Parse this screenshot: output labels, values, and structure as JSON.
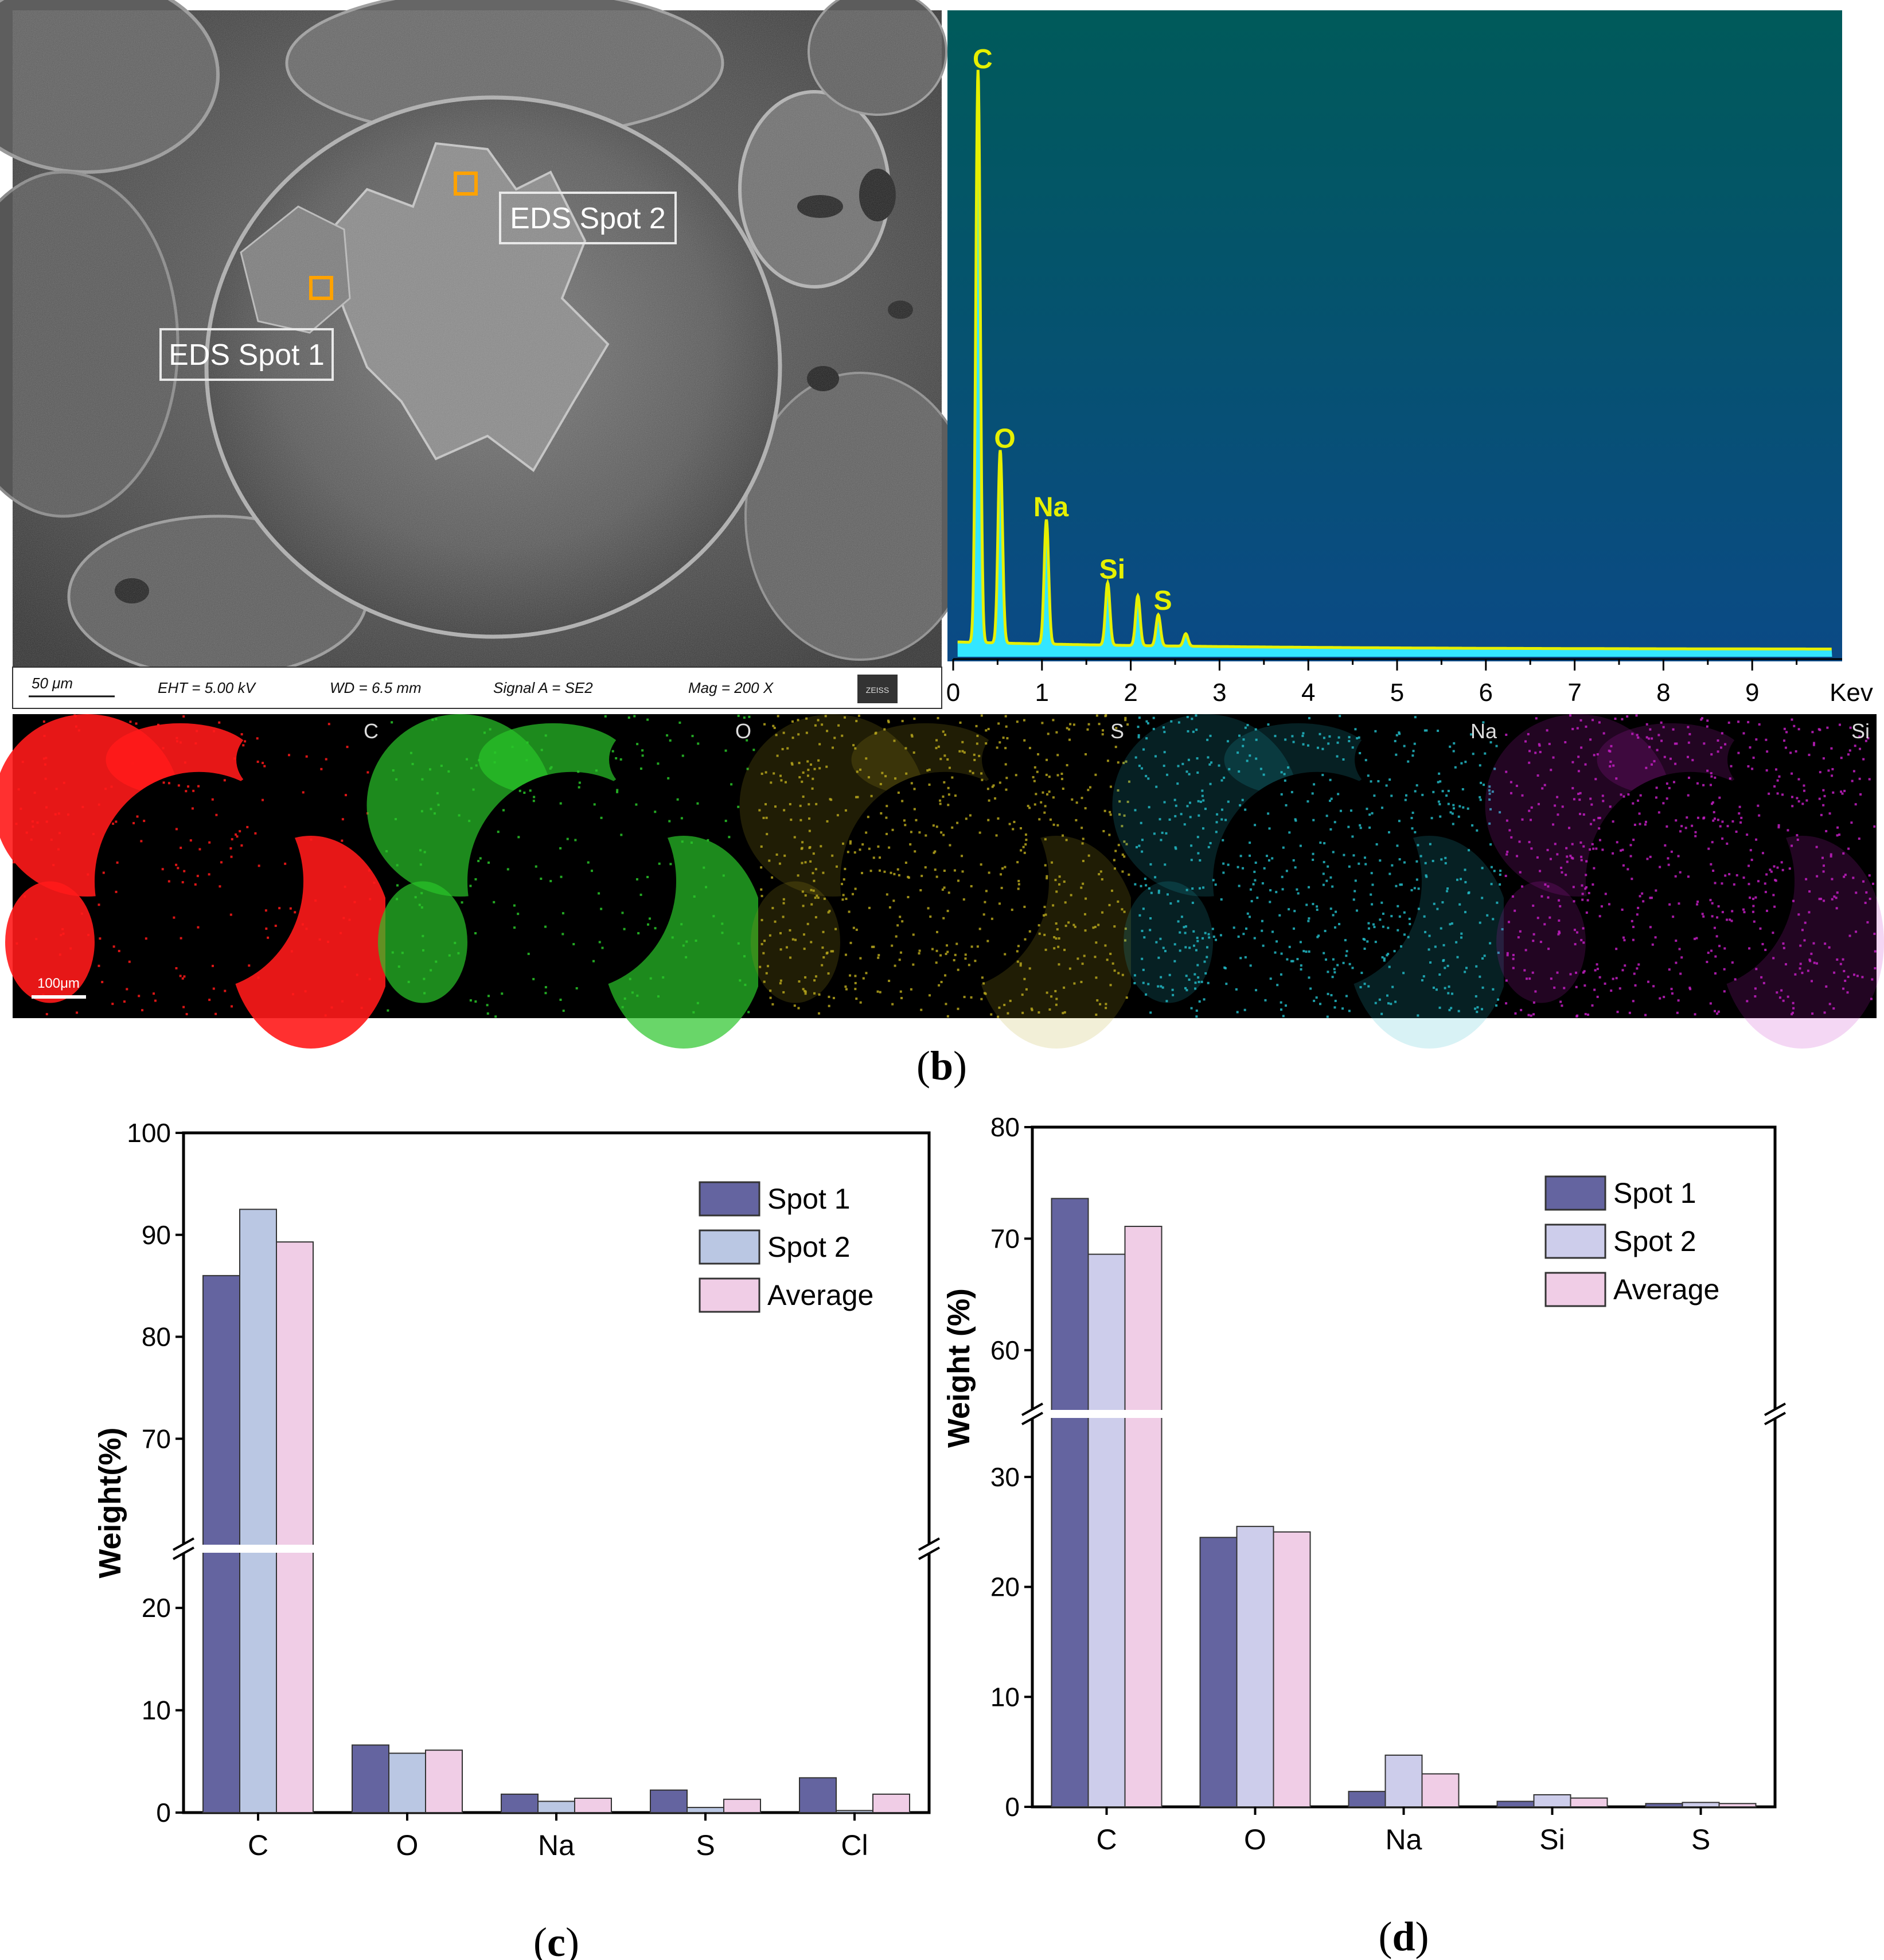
{
  "panel_b": {
    "label": "b",
    "sem": {
      "spot1_label": "EDS Spot 1",
      "spot2_label": "EDS Spot 2",
      "footer": {
        "scale": "50 μm",
        "eht": "EHT = 5.00 kV",
        "wd": "WD = 6.5 mm",
        "signal": "Signal A = SE2",
        "mag": "Mag = 200 X",
        "logo": "ZEISS"
      }
    },
    "maps": {
      "scale": "100μm",
      "items": [
        {
          "element": "C",
          "color": "#ff1a1a"
        },
        {
          "element": "O",
          "color": "#29c429"
        },
        {
          "element": "S",
          "color": "#b5a51c"
        },
        {
          "element": "Na",
          "color": "#22b8c4"
        },
        {
          "element": "Si",
          "color": "#c21fc2"
        }
      ]
    }
  },
  "chart_data": [
    {
      "type": "line",
      "x_unit": "Kev",
      "xlim": [
        0,
        10
      ],
      "xticks": [
        "0",
        "1",
        "2",
        "3",
        "4",
        "5",
        "6",
        "7",
        "8",
        "9"
      ],
      "background": [
        "#005a5a",
        "#0b4a86"
      ],
      "line_color": "#e6f000",
      "fill_color": "#33e6ff",
      "peak_labels": [
        {
          "label": "C",
          "kev": 0.28,
          "intensity": 0.92
        },
        {
          "label": "O",
          "kev": 0.53,
          "intensity": 0.31
        },
        {
          "label": "Na",
          "kev": 1.05,
          "intensity": 0.2
        },
        {
          "label": "Si",
          "kev": 1.74,
          "intensity": 0.1
        },
        {
          "label": "S",
          "kev": 2.31,
          "intensity": 0.05
        }
      ],
      "extra_peaks": [
        {
          "kev": 2.08,
          "intensity": 0.08
        },
        {
          "kev": 2.62,
          "intensity": 0.02
        }
      ]
    },
    {
      "type": "bar",
      "panel_label": "c",
      "ylabel": "Weight(%)",
      "categories": [
        "C",
        "O",
        "Na",
        "S",
        "Cl"
      ],
      "series": [
        {
          "name": "Spot 1",
          "color": "#6464a0",
          "values": [
            86.0,
            6.6,
            1.8,
            2.2,
            3.4
          ]
        },
        {
          "name": "Spot 2",
          "color": "#bac7e3",
          "values": [
            92.5,
            5.8,
            1.1,
            0.5,
            0.2
          ]
        },
        {
          "name": "Average",
          "color": "#f0cde6",
          "values": [
            89.3,
            6.1,
            1.4,
            1.3,
            1.8
          ]
        }
      ],
      "axis_break": {
        "lower": [
          0,
          25
        ],
        "upper": [
          60,
          100
        ]
      },
      "yticks_lower": [
        "0",
        "10",
        "20"
      ],
      "yticks_upper": [
        "70",
        "80",
        "90",
        "100"
      ],
      "legend_position": "top-right"
    },
    {
      "type": "bar",
      "panel_label": "d",
      "ylabel": "Weight (%)",
      "categories": [
        "C",
        "O",
        "Na",
        "Si",
        "S"
      ],
      "series": [
        {
          "name": "Spot 1",
          "color": "#6464a0",
          "values": [
            73.6,
            24.5,
            1.4,
            0.5,
            0.3
          ]
        },
        {
          "name": "Spot 2",
          "color": "#cdcdeb",
          "values": [
            68.6,
            25.5,
            4.7,
            1.1,
            0.4
          ]
        },
        {
          "name": "Average",
          "color": "#f0cde6",
          "values": [
            71.1,
            25.0,
            3.0,
            0.8,
            0.3
          ]
        }
      ],
      "axis_break": {
        "lower": [
          0,
          35
        ],
        "upper": [
          55,
          80
        ]
      },
      "yticks_lower": [
        "0",
        "10",
        "20",
        "30"
      ],
      "yticks_upper": [
        "60",
        "70",
        "80"
      ],
      "legend_position": "top-right"
    }
  ]
}
